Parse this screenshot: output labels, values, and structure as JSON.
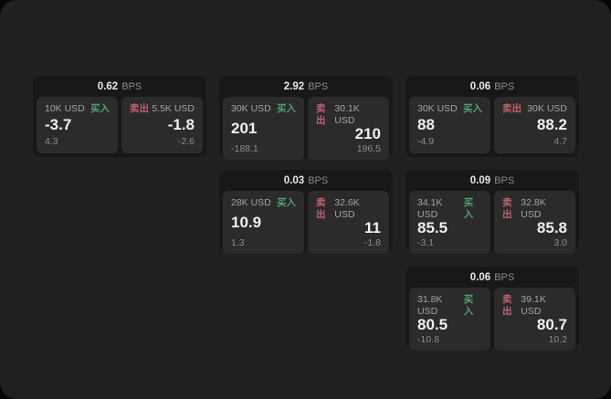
{
  "labels": {
    "bps_unit": "BPS",
    "buy": "买入",
    "sell": "卖出"
  },
  "colors": {
    "buy": "#4fa36d",
    "sell": "#c55e6f",
    "page_bg": "#202020",
    "card_bg": "#181818",
    "panel_bg": "#2b2b2b"
  },
  "cards": [
    {
      "bps": "0.62",
      "buy": {
        "amount": "10K USD",
        "price": "-3.7",
        "delta": "4.3"
      },
      "sell": {
        "amount": "5.5K USD",
        "price": "-1.8",
        "delta": "-2.6"
      }
    },
    {
      "bps": "2.92",
      "buy": {
        "amount": "30K USD",
        "price": "201",
        "delta": "-188.1"
      },
      "sell": {
        "amount": "30.1K USD",
        "price": "210",
        "delta": "196.5"
      }
    },
    {
      "bps": "0.06",
      "buy": {
        "amount": "30K USD",
        "price": "88",
        "delta": "-4.9"
      },
      "sell": {
        "amount": "30K USD",
        "price": "88.2",
        "delta": "4.7"
      }
    },
    {
      "bps": "0.03",
      "buy": {
        "amount": "28K USD",
        "price": "10.9",
        "delta": "1.3"
      },
      "sell": {
        "amount": "32.6K USD",
        "price": "11",
        "delta": "-1.8"
      }
    },
    {
      "bps": "0.09",
      "buy": {
        "amount": "34.1K USD",
        "price": "85.5",
        "delta": "-3.1"
      },
      "sell": {
        "amount": "32.8K USD",
        "price": "85.8",
        "delta": "3.0"
      }
    },
    {
      "bps": "0.06",
      "buy": {
        "amount": "31.8K USD",
        "price": "80.5",
        "delta": "-10.8"
      },
      "sell": {
        "amount": "39.1K USD",
        "price": "80.7",
        "delta": "10.2"
      }
    }
  ]
}
